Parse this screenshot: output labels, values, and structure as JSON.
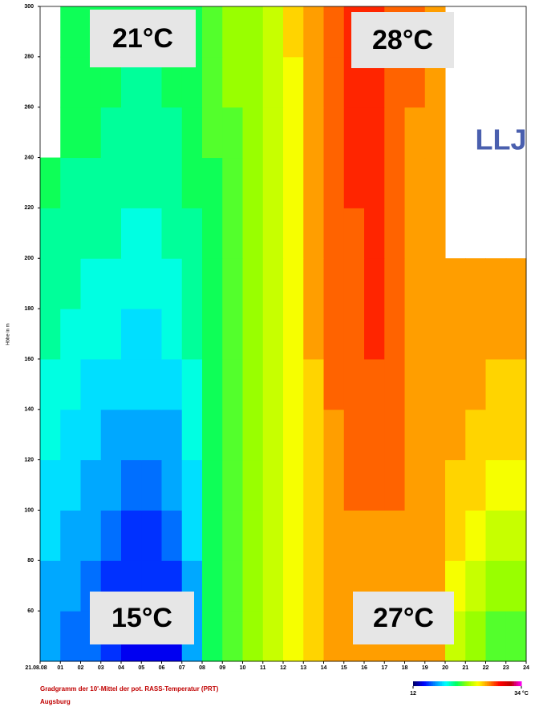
{
  "chart_data": {
    "type": "heatmap",
    "title": "Gradgramm der 10'-Mittel der pot. RASS-Temperatur (PRT)",
    "subtitle": "Augsburg",
    "y_label": "Höhe in m",
    "x": [
      0,
      1,
      2,
      3,
      4,
      5,
      6,
      7,
      8,
      9,
      10,
      11,
      12,
      13,
      14,
      15,
      16,
      17,
      18,
      19,
      20,
      21,
      22,
      23
    ],
    "y": [
      40,
      60,
      80,
      100,
      120,
      140,
      160,
      180,
      200,
      220,
      240,
      260,
      280
    ],
    "values": [
      [
        17,
        16,
        16,
        15,
        14,
        14,
        14,
        17,
        21,
        22,
        23,
        24,
        25,
        26,
        27,
        27,
        27,
        27,
        27,
        27,
        24,
        23,
        22,
        22
      ],
      [
        17,
        17,
        16,
        15,
        15,
        15,
        15,
        17,
        21,
        22,
        23,
        24,
        25,
        26,
        27,
        27,
        27,
        27,
        27,
        27,
        25,
        24,
        23,
        23
      ],
      [
        18,
        17,
        17,
        16,
        15,
        15,
        16,
        18,
        21,
        22,
        23,
        24,
        25,
        26,
        27,
        27,
        27,
        27,
        27,
        27,
        26,
        25,
        24,
        24
      ],
      [
        18,
        18,
        17,
        17,
        16,
        16,
        17,
        18,
        21,
        22,
        23,
        24,
        25,
        26,
        27,
        28,
        28,
        28,
        27,
        27,
        26,
        26,
        25,
        25
      ],
      [
        19,
        18,
        18,
        17,
        17,
        17,
        17,
        19,
        21,
        22,
        23,
        24,
        25,
        26,
        27,
        28,
        28,
        28,
        27,
        27,
        27,
        26,
        26,
        26
      ],
      [
        19,
        19,
        18,
        18,
        18,
        18,
        18,
        19,
        21,
        22,
        23,
        24,
        25,
        26,
        28,
        28,
        28,
        28,
        27,
        27,
        27,
        27,
        26,
        26
      ],
      [
        20,
        19,
        19,
        19,
        18,
        18,
        19,
        20,
        21,
        22,
        23,
        24,
        25,
        27,
        28,
        28,
        29,
        28,
        27,
        27,
        27,
        27,
        27,
        27
      ],
      [
        20,
        20,
        19,
        19,
        19,
        19,
        19,
        20,
        21,
        22,
        23,
        24,
        25,
        27,
        28,
        28,
        29,
        28,
        27,
        27,
        27,
        27,
        27,
        27
      ],
      [
        20,
        20,
        20,
        20,
        19,
        19,
        20,
        20,
        21,
        22,
        23,
        24,
        25,
        27,
        28,
        28,
        29,
        28,
        27,
        27,
        null,
        null,
        null,
        null
      ],
      [
        21,
        20,
        20,
        20,
        20,
        20,
        20,
        21,
        21,
        22,
        23,
        24,
        25,
        27,
        28,
        29,
        29,
        28,
        27,
        27,
        null,
        null,
        null,
        null
      ],
      [
        null,
        21,
        21,
        20,
        20,
        20,
        20,
        21,
        22,
        22,
        23,
        24,
        25,
        27,
        28,
        29,
        29,
        28,
        27,
        27,
        null,
        null,
        null,
        null
      ],
      [
        null,
        21,
        21,
        21,
        20,
        20,
        21,
        21,
        22,
        23,
        23,
        24,
        25,
        27,
        28,
        29,
        29,
        28,
        28,
        27,
        null,
        null,
        null,
        null
      ],
      [
        null,
        21,
        21,
        21,
        21,
        21,
        21,
        21,
        22,
        23,
        23,
        24,
        26,
        27,
        28,
        29,
        29,
        28,
        28,
        27,
        null,
        null,
        null,
        null
      ]
    ],
    "xlim": [
      0,
      24
    ],
    "xticks": [
      {
        "value": 0,
        "label": "21.08.08"
      },
      {
        "value": 1,
        "label": "01"
      },
      {
        "value": 2,
        "label": "02"
      },
      {
        "value": 3,
        "label": "03"
      },
      {
        "value": 4,
        "label": "04"
      },
      {
        "value": 5,
        "label": "05"
      },
      {
        "value": 6,
        "label": "06"
      },
      {
        "value": 7,
        "label": "07"
      },
      {
        "value": 8,
        "label": "08"
      },
      {
        "value": 9,
        "label": "09"
      },
      10,
      11,
      12,
      13,
      14,
      15,
      16,
      17,
      18,
      19,
      20,
      21,
      22,
      23,
      24
    ],
    "ylim": [
      40,
      300
    ],
    "yticks": [
      60,
      80,
      100,
      120,
      140,
      160,
      180,
      200,
      220,
      240,
      260,
      280,
      300
    ],
    "clim": [
      12,
      34
    ],
    "cticks": [
      12,
      {
        "value": 34,
        "label": "34 °C"
      }
    ],
    "colorscale": [
      "#000060",
      "#0000ff",
      "#0088ff",
      "#00ffff",
      "#00ff60",
      "#99ff00",
      "#ffff00",
      "#ff8800",
      "#ff0000",
      "#c00000",
      "#ff00ff"
    ],
    "annotations": [
      "21°C",
      "28°C",
      "LLJ",
      "15°C",
      "27°C"
    ]
  }
}
